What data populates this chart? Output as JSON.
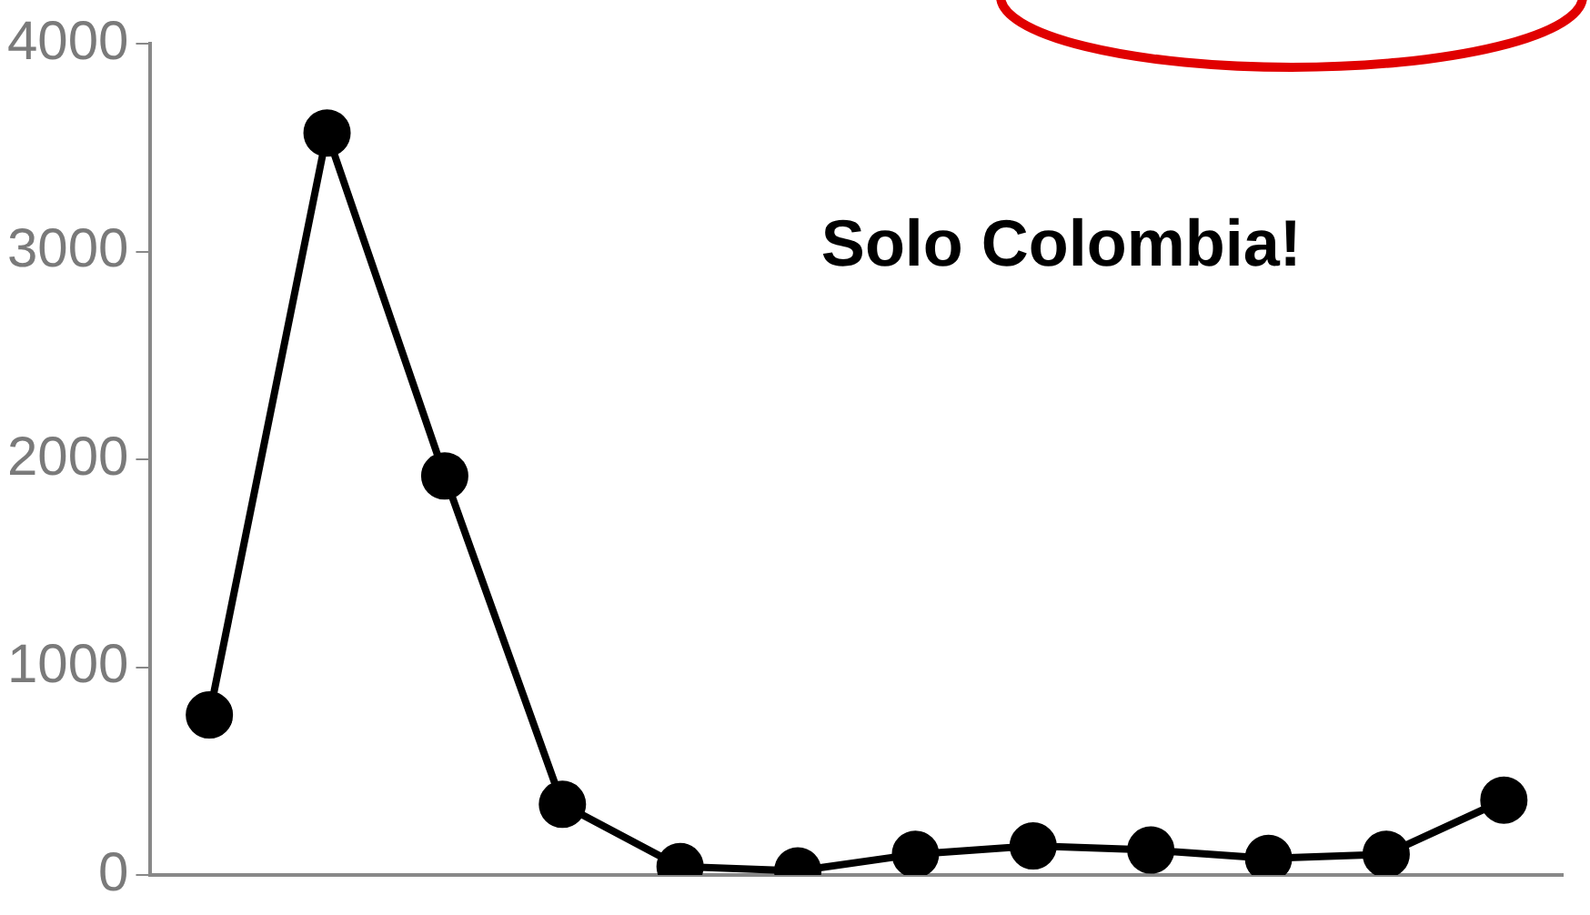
{
  "chart_data": {
    "type": "line",
    "categories": [
      null,
      null,
      null,
      null,
      null,
      null,
      null,
      null,
      null,
      null,
      null,
      null
    ],
    "series": [
      {
        "color": "#000000",
        "values": [
          770,
          3570,
          1920,
          340,
          40,
          20,
          100,
          140,
          120,
          80,
          100,
          360
        ]
      }
    ],
    "ylim": [
      0,
      4000
    ],
    "yticks": [
      0,
      1000,
      2000,
      3000,
      4000
    ],
    "grid": false,
    "legend": false,
    "marker": "circle",
    "line_style": "solid",
    "tick_labels": "y",
    "annotations": [
      "Solo Colombia!"
    ]
  }
}
